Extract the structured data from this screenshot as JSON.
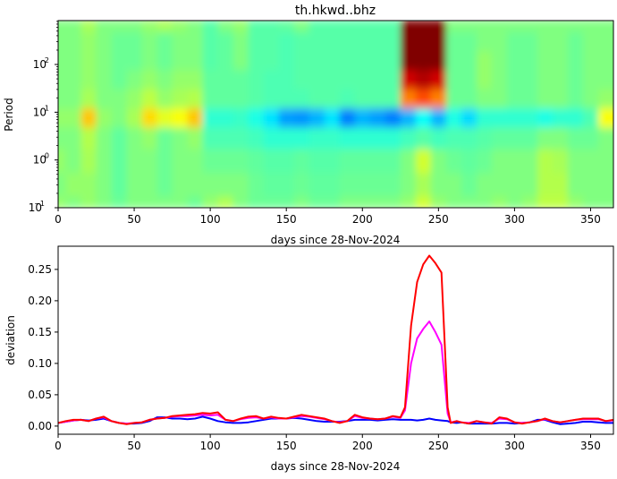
{
  "chart_data": [
    {
      "type": "heatmap",
      "title": "th.hkwd..bhz",
      "xlabel": "days since 28-Nov-2024",
      "ylabel": "Period",
      "xlim": [
        0,
        365
      ],
      "ylim": [
        0.1,
        830
      ],
      "yscale": "log",
      "colormap": "jet",
      "xticks": [
        "0",
        "50",
        "100",
        "150",
        "200",
        "250",
        "300",
        "350"
      ],
      "yticks": [
        "10^-1",
        "10^0",
        "10^1",
        "10^2"
      ],
      "x_days": [
        0,
        10,
        20,
        30,
        40,
        50,
        60,
        70,
        80,
        90,
        100,
        110,
        120,
        130,
        140,
        150,
        160,
        170,
        180,
        190,
        200,
        210,
        220,
        230,
        240,
        250,
        260,
        270,
        280,
        290,
        300,
        310,
        320,
        330,
        340,
        350,
        360
      ],
      "log10_period": [
        -1,
        -0.5,
        0,
        0.5,
        0.9,
        1.3,
        1.7,
        2.1,
        2.5,
        2.9
      ],
      "values_normalized": [
        [
          0.52,
          0.5,
          0.52,
          0.5,
          0.48,
          0.5,
          0.5,
          0.5,
          0.5,
          0.48,
          0.52,
          0.55,
          0.5,
          0.48,
          0.48,
          0.48,
          0.5,
          0.48,
          0.48,
          0.5,
          0.5,
          0.5,
          0.5,
          0.52,
          0.58,
          0.52,
          0.5,
          0.5,
          0.5,
          0.52,
          0.5,
          0.52,
          0.56,
          0.56,
          0.52,
          0.5,
          0.5
        ],
        [
          0.5,
          0.52,
          0.52,
          0.5,
          0.47,
          0.5,
          0.5,
          0.48,
          0.5,
          0.5,
          0.5,
          0.5,
          0.5,
          0.48,
          0.47,
          0.47,
          0.48,
          0.47,
          0.47,
          0.48,
          0.48,
          0.48,
          0.48,
          0.5,
          0.54,
          0.5,
          0.5,
          0.48,
          0.5,
          0.5,
          0.5,
          0.5,
          0.55,
          0.55,
          0.5,
          0.5,
          0.5
        ],
        [
          0.52,
          0.5,
          0.54,
          0.5,
          0.47,
          0.5,
          0.5,
          0.48,
          0.5,
          0.5,
          0.48,
          0.48,
          0.48,
          0.47,
          0.46,
          0.46,
          0.47,
          0.46,
          0.46,
          0.47,
          0.47,
          0.47,
          0.47,
          0.5,
          0.58,
          0.5,
          0.48,
          0.47,
          0.48,
          0.5,
          0.5,
          0.5,
          0.55,
          0.54,
          0.5,
          0.5,
          0.5
        ],
        [
          0.5,
          0.5,
          0.55,
          0.5,
          0.47,
          0.5,
          0.52,
          0.48,
          0.5,
          0.52,
          0.45,
          0.45,
          0.45,
          0.44,
          0.42,
          0.42,
          0.42,
          0.43,
          0.43,
          0.42,
          0.42,
          0.42,
          0.42,
          0.44,
          0.46,
          0.44,
          0.45,
          0.45,
          0.46,
          0.47,
          0.47,
          0.47,
          0.5,
          0.5,
          0.48,
          0.48,
          0.5
        ],
        [
          0.52,
          0.52,
          0.68,
          0.52,
          0.5,
          0.54,
          0.66,
          0.6,
          0.62,
          0.68,
          0.42,
          0.42,
          0.43,
          0.4,
          0.35,
          0.28,
          0.27,
          0.3,
          0.35,
          0.25,
          0.3,
          0.28,
          0.25,
          0.3,
          0.38,
          0.3,
          0.4,
          0.34,
          0.42,
          0.42,
          0.42,
          0.42,
          0.4,
          0.42,
          0.42,
          0.45,
          0.62
        ],
        [
          0.5,
          0.5,
          0.54,
          0.5,
          0.5,
          0.52,
          0.56,
          0.52,
          0.54,
          0.55,
          0.47,
          0.47,
          0.47,
          0.46,
          0.45,
          0.45,
          0.45,
          0.46,
          0.46,
          0.45,
          0.46,
          0.46,
          0.46,
          0.75,
          0.8,
          0.75,
          0.48,
          0.48,
          0.5,
          0.5,
          0.48,
          0.48,
          0.5,
          0.5,
          0.48,
          0.5,
          0.52
        ],
        [
          0.5,
          0.5,
          0.52,
          0.5,
          0.48,
          0.5,
          0.52,
          0.5,
          0.52,
          0.52,
          0.47,
          0.47,
          0.47,
          0.46,
          0.45,
          0.45,
          0.46,
          0.46,
          0.46,
          0.46,
          0.46,
          0.46,
          0.46,
          0.92,
          0.95,
          0.92,
          0.48,
          0.48,
          0.52,
          0.5,
          0.48,
          0.48,
          0.5,
          0.5,
          0.48,
          0.5,
          0.5
        ],
        [
          0.5,
          0.5,
          0.52,
          0.5,
          0.48,
          0.48,
          0.5,
          0.48,
          0.5,
          0.5,
          0.46,
          0.47,
          0.5,
          0.46,
          0.46,
          0.45,
          0.46,
          0.46,
          0.46,
          0.46,
          0.46,
          0.46,
          0.46,
          1.0,
          1.0,
          1.0,
          0.48,
          0.48,
          0.52,
          0.5,
          0.48,
          0.48,
          0.5,
          0.5,
          0.48,
          0.5,
          0.5
        ],
        [
          0.5,
          0.5,
          0.52,
          0.5,
          0.48,
          0.48,
          0.5,
          0.48,
          0.5,
          0.5,
          0.46,
          0.47,
          0.5,
          0.46,
          0.46,
          0.45,
          0.46,
          0.46,
          0.46,
          0.46,
          0.46,
          0.46,
          0.46,
          1.0,
          1.0,
          1.0,
          0.48,
          0.48,
          0.5,
          0.5,
          0.48,
          0.48,
          0.5,
          0.5,
          0.48,
          0.5,
          0.5
        ],
        [
          0.5,
          0.5,
          0.54,
          0.5,
          0.5,
          0.5,
          0.52,
          0.54,
          0.52,
          0.5,
          0.46,
          0.5,
          0.52,
          0.46,
          0.46,
          0.47,
          0.5,
          0.46,
          0.46,
          0.46,
          0.46,
          0.46,
          0.46,
          1.0,
          1.0,
          1.0,
          0.5,
          0.5,
          0.5,
          0.5,
          0.5,
          0.5,
          0.5,
          0.5,
          0.5,
          0.5,
          0.5
        ]
      ]
    },
    {
      "type": "line",
      "xlabel": "days since 28-Nov-2024",
      "ylabel": "deviation",
      "xlim": [
        0,
        365
      ],
      "ylim": [
        -0.013,
        0.287
      ],
      "xticks": [
        "0",
        "50",
        "100",
        "150",
        "200",
        "250",
        "300",
        "350"
      ],
      "yticks": [
        "0.00",
        "0.05",
        "0.10",
        "0.15",
        "0.20",
        "0.25"
      ],
      "x": [
        0,
        5,
        10,
        15,
        20,
        25,
        30,
        35,
        40,
        45,
        50,
        55,
        60,
        65,
        70,
        75,
        80,
        85,
        90,
        95,
        100,
        105,
        110,
        115,
        120,
        125,
        130,
        135,
        140,
        145,
        150,
        155,
        160,
        165,
        170,
        175,
        180,
        185,
        190,
        195,
        200,
        205,
        210,
        215,
        220,
        225,
        228,
        232,
        236,
        240,
        244,
        248,
        252,
        256,
        258,
        262,
        265,
        270,
        275,
        280,
        285,
        290,
        295,
        300,
        305,
        310,
        315,
        320,
        325,
        330,
        335,
        340,
        345,
        350,
        355,
        360,
        365
      ],
      "series": [
        {
          "color": "#0000ff",
          "values": [
            0.005,
            0.007,
            0.009,
            0.01,
            0.009,
            0.01,
            0.012,
            0.008,
            0.005,
            0.004,
            0.004,
            0.005,
            0.008,
            0.014,
            0.014,
            0.012,
            0.012,
            0.011,
            0.012,
            0.015,
            0.012,
            0.008,
            0.006,
            0.005,
            0.005,
            0.006,
            0.008,
            0.01,
            0.012,
            0.012,
            0.012,
            0.013,
            0.012,
            0.01,
            0.008,
            0.007,
            0.007,
            0.007,
            0.008,
            0.01,
            0.01,
            0.01,
            0.009,
            0.01,
            0.011,
            0.01,
            0.01,
            0.01,
            0.009,
            0.01,
            0.012,
            0.01,
            0.009,
            0.008,
            0.006,
            0.005,
            0.006,
            0.004,
            0.004,
            0.004,
            0.004,
            0.005,
            0.005,
            0.004,
            0.005,
            0.006,
            0.01,
            0.01,
            0.006,
            0.003,
            0.004,
            0.005,
            0.007,
            0.007,
            0.006,
            0.005,
            0.005
          ]
        },
        {
          "color": "#ff00ff",
          "values": [
            0.005,
            0.007,
            0.009,
            0.01,
            0.008,
            0.012,
            0.014,
            0.008,
            0.005,
            0.004,
            0.005,
            0.006,
            0.01,
            0.012,
            0.013,
            0.015,
            0.016,
            0.016,
            0.017,
            0.018,
            0.017,
            0.018,
            0.01,
            0.008,
            0.011,
            0.013,
            0.014,
            0.012,
            0.014,
            0.012,
            0.012,
            0.014,
            0.016,
            0.015,
            0.013,
            0.011,
            0.008,
            0.006,
            0.008,
            0.016,
            0.013,
            0.012,
            0.011,
            0.012,
            0.015,
            0.013,
            0.025,
            0.1,
            0.14,
            0.155,
            0.167,
            0.15,
            0.13,
            0.02,
            0.006,
            0.008,
            0.006,
            0.005,
            0.008,
            0.006,
            0.005,
            0.012,
            0.011,
            0.006,
            0.005,
            0.006,
            0.008,
            0.011,
            0.008,
            0.006,
            0.008,
            0.01,
            0.011,
            0.011,
            0.011,
            0.008,
            0.009
          ]
        },
        {
          "color": "#ff0000",
          "values": [
            0.005,
            0.008,
            0.01,
            0.01,
            0.008,
            0.012,
            0.015,
            0.008,
            0.005,
            0.003,
            0.005,
            0.006,
            0.01,
            0.012,
            0.013,
            0.016,
            0.017,
            0.018,
            0.019,
            0.021,
            0.02,
            0.022,
            0.01,
            0.008,
            0.012,
            0.015,
            0.016,
            0.012,
            0.015,
            0.013,
            0.012,
            0.015,
            0.018,
            0.016,
            0.014,
            0.012,
            0.008,
            0.005,
            0.008,
            0.018,
            0.014,
            0.012,
            0.011,
            0.012,
            0.016,
            0.014,
            0.03,
            0.16,
            0.23,
            0.258,
            0.272,
            0.26,
            0.245,
            0.03,
            0.005,
            0.008,
            0.006,
            0.004,
            0.008,
            0.006,
            0.004,
            0.014,
            0.012,
            0.006,
            0.004,
            0.006,
            0.008,
            0.012,
            0.008,
            0.006,
            0.008,
            0.01,
            0.012,
            0.012,
            0.012,
            0.008,
            0.01
          ]
        }
      ]
    }
  ]
}
